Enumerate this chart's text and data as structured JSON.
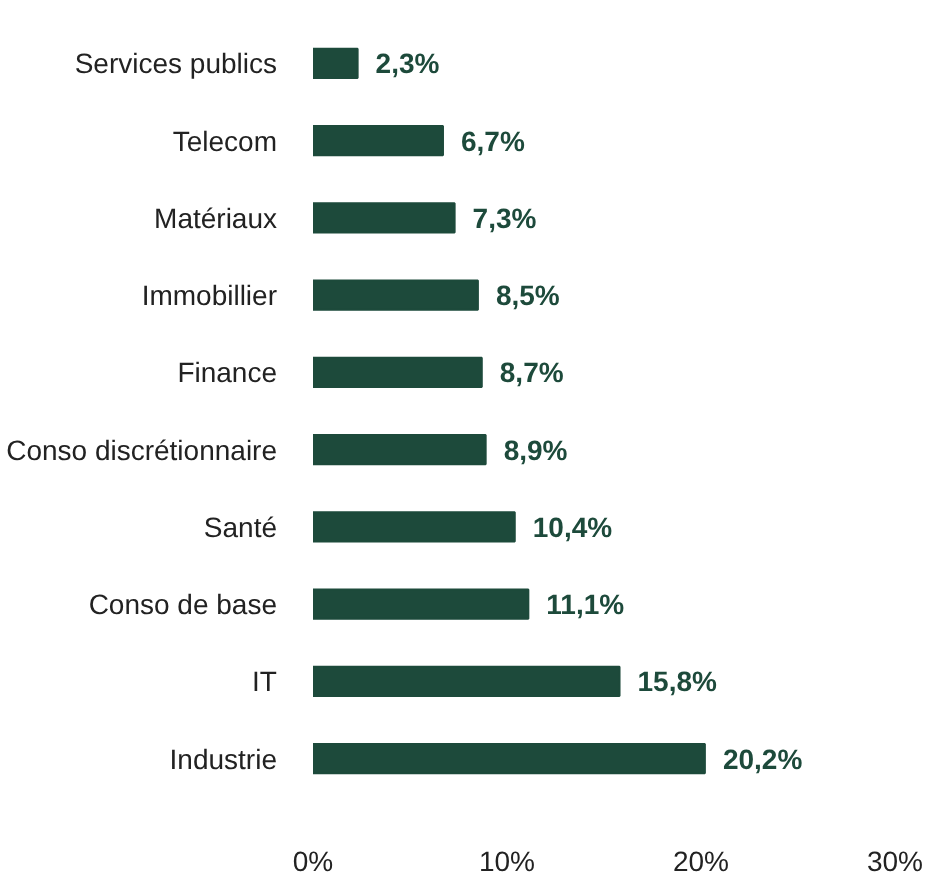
{
  "chart_data": {
    "type": "bar",
    "orientation": "horizontal",
    "categories": [
      "Services publics",
      "Telecom",
      "Matériaux",
      "Immobillier",
      "Finance",
      "Conso discrétionnaire",
      "Santé",
      "Conso de base",
      "IT",
      "Industrie"
    ],
    "values": [
      2.3,
      6.7,
      7.3,
      8.5,
      8.7,
      8.9,
      10.4,
      11.1,
      15.8,
      20.2
    ],
    "value_labels": [
      "2,3%",
      "6,7%",
      "7,3%",
      "8,5%",
      "8,7%",
      "8,9%",
      "10,4%",
      "11,1%",
      "15,8%",
      "20,2%"
    ],
    "color": "#1d4a3b",
    "xlim": [
      0,
      30
    ],
    "xticks": [
      {
        "value": 0,
        "label": "0%"
      },
      {
        "value": 10,
        "label": "10%"
      },
      {
        "value": 20,
        "label": "20%"
      },
      {
        "value": 30,
        "label": "30%"
      }
    ],
    "grid": false
  }
}
